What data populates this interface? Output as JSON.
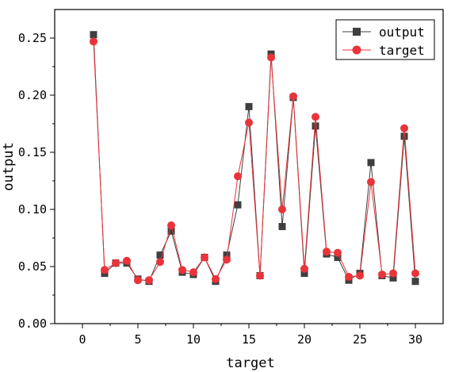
{
  "chart_data": {
    "type": "line",
    "xlabel": "target",
    "ylabel": "output",
    "xlim": [
      -2.5,
      32.5
    ],
    "ylim": [
      0,
      0.275
    ],
    "xticks": [
      0,
      5,
      10,
      15,
      20,
      25,
      30
    ],
    "xtick_labels": [
      "0",
      "5",
      "10",
      "15",
      "20",
      "25",
      "30"
    ],
    "yticks": [
      0.0,
      0.05,
      0.1,
      0.15,
      0.2,
      0.25
    ],
    "ytick_labels": [
      "0.00",
      "0.05",
      "0.10",
      "0.15",
      "0.20",
      "0.25"
    ],
    "grid": false,
    "legend_position": "top-right",
    "x": [
      1,
      2,
      3,
      4,
      5,
      6,
      7,
      8,
      9,
      10,
      11,
      12,
      13,
      14,
      15,
      16,
      17,
      18,
      19,
      20,
      21,
      22,
      23,
      24,
      25,
      26,
      27,
      28,
      29,
      30
    ],
    "series": [
      {
        "name": "output",
        "marker": "square",
        "color": "#3f3f3f",
        "values": [
          0.253,
          0.044,
          0.053,
          0.053,
          0.039,
          0.037,
          0.06,
          0.081,
          0.045,
          0.043,
          0.058,
          0.037,
          0.06,
          0.104,
          0.19,
          0.042,
          0.236,
          0.085,
          0.198,
          0.044,
          0.173,
          0.061,
          0.058,
          0.038,
          0.044,
          0.141,
          0.042,
          0.04,
          0.164,
          0.037
        ]
      },
      {
        "name": "target",
        "marker": "circle",
        "color": "#e8343a",
        "values": [
          0.247,
          0.047,
          0.053,
          0.055,
          0.038,
          0.038,
          0.054,
          0.086,
          0.047,
          0.045,
          0.058,
          0.039,
          0.056,
          0.129,
          0.176,
          0.042,
          0.233,
          0.1,
          0.199,
          0.048,
          0.181,
          0.063,
          0.062,
          0.041,
          0.042,
          0.124,
          0.043,
          0.044,
          0.171,
          0.044
        ]
      }
    ]
  }
}
